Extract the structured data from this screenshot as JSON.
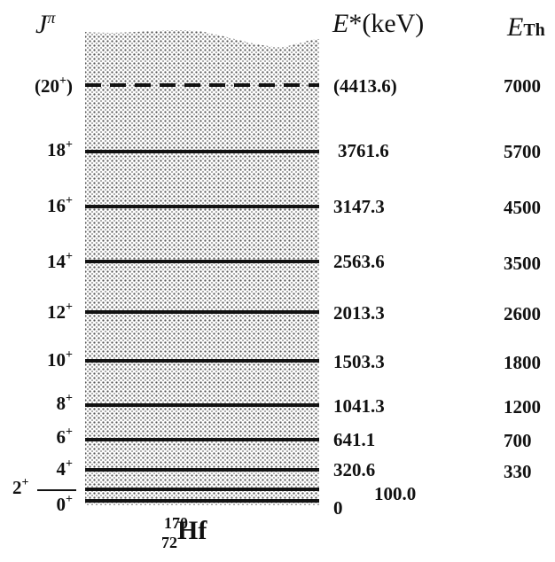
{
  "headers": {
    "jp_symbol": "J",
    "jp_sup": "π",
    "e_symbol": "E",
    "e_text": "*(keV)",
    "eth_symbol": "E",
    "eth_sub": "Th"
  },
  "nucleus": {
    "mass": "170",
    "z": "72",
    "symbol": "Hf"
  },
  "levels": [
    {
      "spin": "(20",
      "spin_sup": "+",
      "spin_tail": ")",
      "energy": "(4413.6)",
      "eth": "7000",
      "style": "dashed"
    },
    {
      "spin": "18",
      "spin_sup": "+",
      "spin_tail": "",
      "energy": "3761.6",
      "eth": "5700",
      "style": "solid"
    },
    {
      "spin": "16",
      "spin_sup": "+",
      "spin_tail": "",
      "energy": "3147.3",
      "eth": "4500",
      "style": "solid"
    },
    {
      "spin": "14",
      "spin_sup": "+",
      "spin_tail": "",
      "energy": "2563.6",
      "eth": "3500",
      "style": "solid"
    },
    {
      "spin": "12",
      "spin_sup": "+",
      "spin_tail": "",
      "energy": "2013.3",
      "eth": "2600",
      "style": "solid"
    },
    {
      "spin": "10",
      "spin_sup": "+",
      "spin_tail": "",
      "energy": "1503.3",
      "eth": "1800",
      "style": "solid"
    },
    {
      "spin": "8",
      "spin_sup": "+",
      "spin_tail": "",
      "energy": "1041.3",
      "eth": "1200",
      "style": "solid"
    },
    {
      "spin": "6",
      "spin_sup": "+",
      "spin_tail": "",
      "energy": "641.1",
      "eth": "700",
      "style": "solid"
    },
    {
      "spin": "4",
      "spin_sup": "+",
      "spin_tail": "",
      "energy": "320.6",
      "eth": "330",
      "style": "solid"
    },
    {
      "spin": "2",
      "spin_sup": "+",
      "spin_tail": "",
      "energy": "100.0",
      "eth": "",
      "style": "solid"
    },
    {
      "spin": "0",
      "spin_sup": "+",
      "spin_tail": "",
      "energy": "0",
      "eth": "",
      "style": "solid"
    }
  ],
  "colors": {
    "ink": "#111111",
    "stipple": "#555555",
    "background": "#ffffff"
  }
}
